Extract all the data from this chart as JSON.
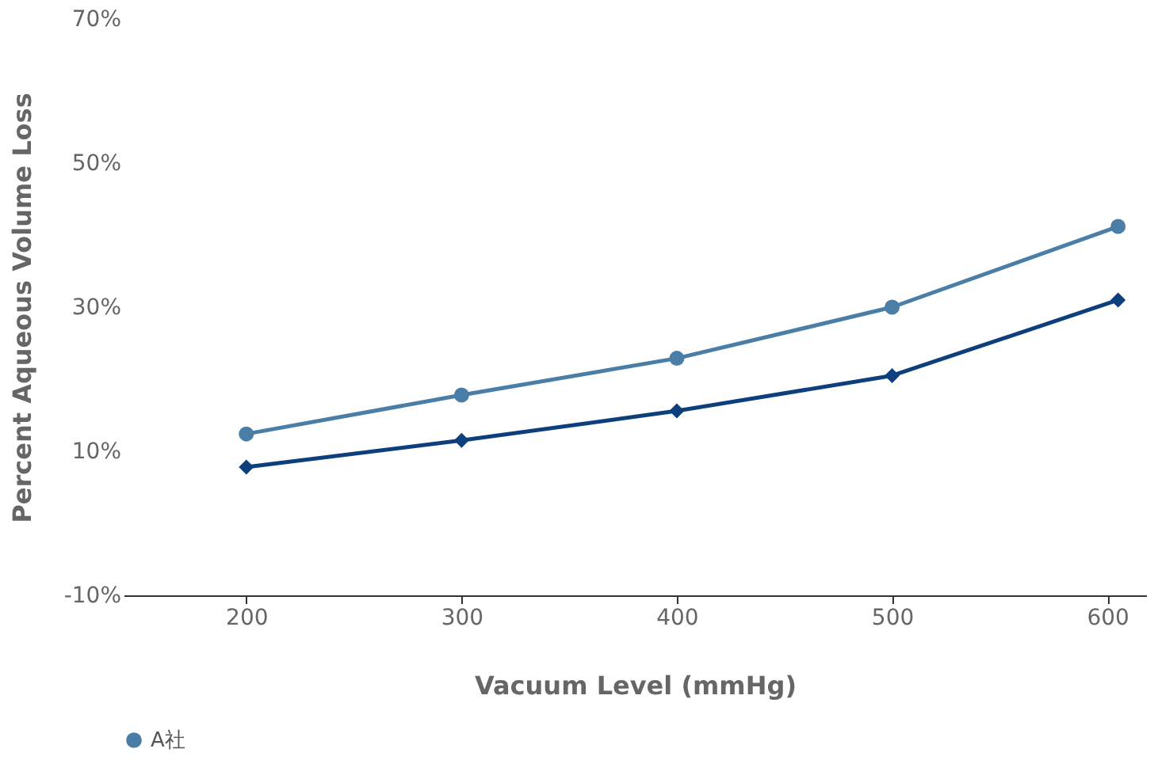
{
  "chart_data": {
    "type": "line",
    "xlabel": "Vacuum Level (mmHg)",
    "ylabel": "Percent Aqueous Volume Loss",
    "x": [
      200,
      300,
      400,
      500,
      605
    ],
    "series": [
      {
        "color": "#0d3f7c",
        "marker": "diamond",
        "values": [
          7.8,
          11.5,
          15.6,
          20.5,
          31
        ]
      },
      {
        "name": "A社",
        "color": "#4a7ea6",
        "marker": "circle",
        "values": [
          12.4,
          17.8,
          22.9,
          30,
          41.2
        ]
      }
    ],
    "xlim": [
      143,
      618
    ],
    "xticks": [
      200,
      300,
      400,
      500,
      600
    ],
    "ylim": [
      -10,
      70
    ],
    "yticks": [
      {
        "value": -10,
        "label": "-10%"
      },
      {
        "value": 10,
        "label": "10%"
      },
      {
        "value": 30,
        "label": "30%"
      },
      {
        "value": 50,
        "label": "50%"
      },
      {
        "value": 70,
        "label": "70%"
      }
    ],
    "grid": false,
    "legend": "bottom"
  }
}
